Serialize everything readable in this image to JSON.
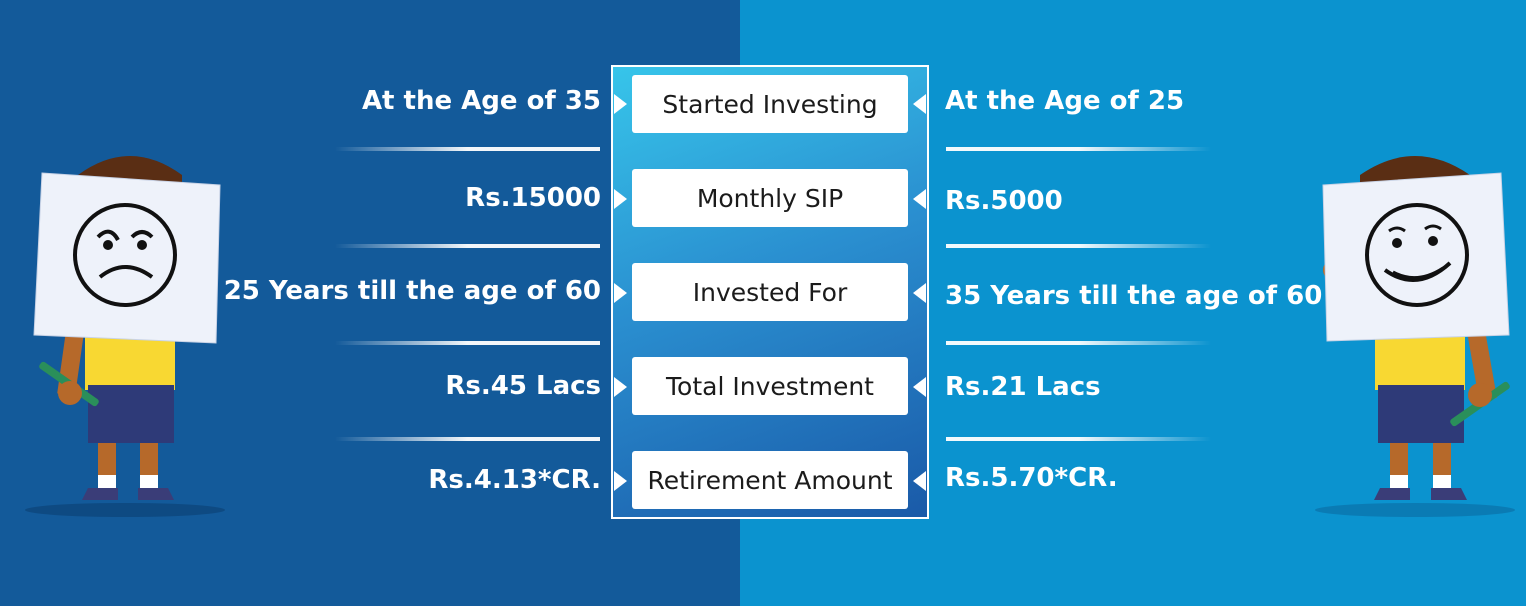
{
  "center": {
    "labels": [
      "Started Investing",
      "Monthly SIP",
      "Invested For",
      "Total Investment",
      "Retirement Amount"
    ]
  },
  "left_column": {
    "values": [
      "At the Age of 35",
      "Rs.15000",
      "25 Years till the age of 60",
      "Rs.45 Lacs",
      "Rs.4.13*CR."
    ]
  },
  "right_column": {
    "values": [
      "At the Age of 25",
      "Rs.5000",
      "35 Years till the age of 60",
      "Rs.21 Lacs",
      "Rs.5.70*CR."
    ]
  },
  "colors": {
    "left_background": "#135a9a",
    "right_background": "#0b93cf",
    "box_fill": "#ffffff",
    "shirt": "#f8d832",
    "shorts": "#2e3a78"
  },
  "illustrations": {
    "left": "sad-boy-holding-sign",
    "right": "happy-boy-holding-sign"
  }
}
